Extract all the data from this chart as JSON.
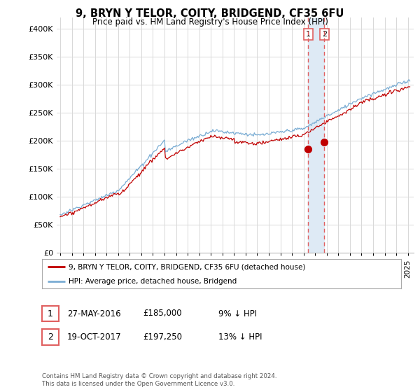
{
  "title": "9, BRYN Y TELOR, COITY, BRIDGEND, CF35 6FU",
  "subtitle": "Price paid vs. HM Land Registry's House Price Index (HPI)",
  "legend_entry1": "9, BRYN Y TELOR, COITY, BRIDGEND, CF35 6FU (detached house)",
  "legend_entry2": "HPI: Average price, detached house, Bridgend",
  "table_row1_date": "27-MAY-2016",
  "table_row1_price": "£185,000",
  "table_row1_hpi": "9% ↓ HPI",
  "table_row2_date": "19-OCT-2017",
  "table_row2_price": "£197,250",
  "table_row2_hpi": "13% ↓ HPI",
  "footer": "Contains HM Land Registry data © Crown copyright and database right 2024.\nThis data is licensed under the Open Government Licence v3.0.",
  "vline1_year": 2016.4,
  "vline2_year": 2017.8,
  "sale1_year": 2016.4,
  "sale1_price": 185000,
  "sale2_year": 2017.8,
  "sale2_price": 197250,
  "hpi_color": "#7aadd4",
  "price_color": "#c00000",
  "vline_color": "#e06060",
  "shade_color": "#deeaf5",
  "ylim": [
    0,
    420000
  ],
  "yticks": [
    0,
    50000,
    100000,
    150000,
    200000,
    250000,
    300000,
    350000,
    400000
  ],
  "ytick_labels": [
    "£0",
    "£50K",
    "£100K",
    "£150K",
    "£200K",
    "£250K",
    "£300K",
    "£350K",
    "£400K"
  ],
  "background_color": "#ffffff",
  "grid_color": "#d8d8d8"
}
